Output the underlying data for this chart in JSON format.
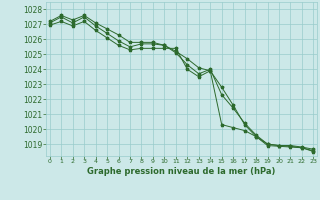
{
  "x": [
    0,
    1,
    2,
    3,
    4,
    5,
    6,
    7,
    8,
    9,
    10,
    11,
    12,
    13,
    14,
    15,
    16,
    17,
    18,
    19,
    20,
    21,
    22,
    23
  ],
  "line1": [
    1027.2,
    1027.6,
    1027.3,
    1027.6,
    1027.1,
    1026.7,
    1026.3,
    1025.8,
    1025.8,
    1025.8,
    1025.6,
    1025.2,
    1024.7,
    1024.1,
    1023.9,
    1022.8,
    1021.6,
    1020.3,
    1019.5,
    1019.0,
    1018.9,
    1018.9,
    1018.8,
    1018.65
  ],
  "line2": [
    1027.1,
    1027.5,
    1027.1,
    1027.5,
    1026.9,
    1026.4,
    1025.9,
    1025.5,
    1025.7,
    1025.7,
    1025.6,
    1025.1,
    1024.3,
    1023.7,
    1024.0,
    1022.3,
    1021.4,
    1020.4,
    1019.6,
    1019.0,
    1018.9,
    1018.85,
    1018.75,
    1018.55
  ],
  "line3": [
    1026.95,
    1027.2,
    1026.9,
    1027.2,
    1026.6,
    1026.1,
    1025.6,
    1025.3,
    1025.4,
    1025.4,
    1025.4,
    1025.4,
    1024.0,
    1023.5,
    1023.9,
    1020.3,
    1020.1,
    1019.9,
    1019.5,
    1018.9,
    1018.85,
    1018.8,
    1018.75,
    1018.5
  ],
  "line_color": "#2d6a2d",
  "bg_color": "#cce8e8",
  "grid_color": "#99cccc",
  "ylabel_ticks": [
    1019,
    1020,
    1021,
    1022,
    1023,
    1024,
    1025,
    1026,
    1027,
    1028
  ],
  "xlabel": "Graphe pression niveau de la mer (hPa)",
  "ylim_min": 1018.2,
  "ylim_max": 1028.5,
  "tick_fontsize": 5.5
}
